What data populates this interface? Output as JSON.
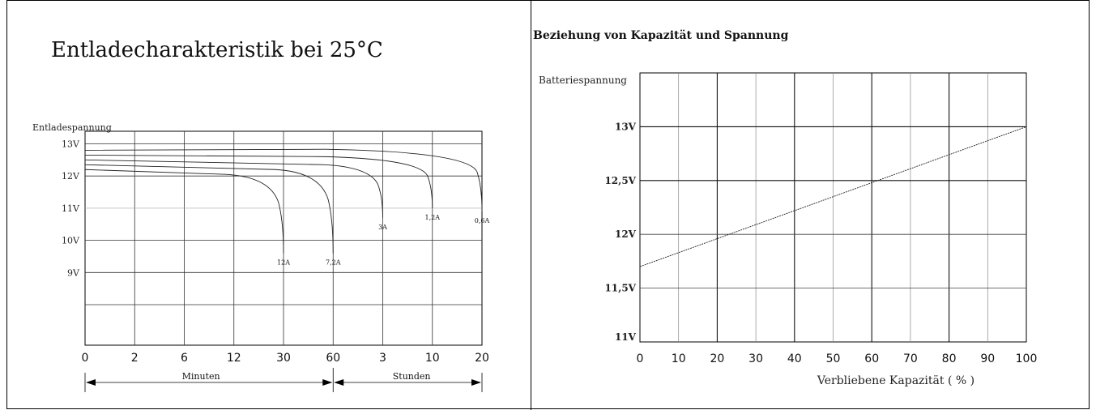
{
  "chart_data": [
    {
      "type": "line",
      "title": "Entladecharakteristik bei 25°C",
      "ylabel": "Entladespannung",
      "y_ticks": [
        "13V",
        "12V",
        "11V",
        "10V",
        "9V"
      ],
      "x_ticks": [
        "0",
        "2",
        "6",
        "12",
        "30",
        "60",
        "3",
        "10",
        "20"
      ],
      "x_groups": [
        "Minuten",
        "Stunden"
      ],
      "grid": true,
      "series": [
        {
          "name": "12A",
          "points": [
            [
              0,
              12.2
            ],
            [
              12,
              12.0
            ],
            [
              30,
              9.6
            ]
          ]
        },
        {
          "name": "7,2A",
          "points": [
            [
              0,
              12.35
            ],
            [
              30,
              12.15
            ],
            [
              60,
              9.6
            ]
          ]
        },
        {
          "name": "3A",
          "points": [
            [
              0,
              12.5
            ],
            [
              60,
              12.3
            ],
            [
              3,
              10.7
            ]
          ]
        },
        {
          "name": "1,2A",
          "points": [
            [
              0,
              12.65
            ],
            [
              60,
              12.55
            ],
            [
              10,
              11.0
            ]
          ]
        },
        {
          "name": "0,6A",
          "points": [
            [
              0,
              12.8
            ],
            [
              60,
              12.78
            ],
            [
              20,
              10.9
            ]
          ]
        }
      ]
    },
    {
      "type": "line",
      "title": "Beziehung von Kapazität und Spannung",
      "ylabel": "Batteriespannung",
      "xlabel": "Verbliebene Kapazität ( % )",
      "x_ticks": [
        "0",
        "10",
        "20",
        "30",
        "40",
        "50",
        "60",
        "70",
        "80",
        "90",
        "100"
      ],
      "y_ticks": [
        "13V",
        "12,5V",
        "12V",
        "11,5V",
        "11V"
      ],
      "xlim": [
        0,
        100
      ],
      "ylim": [
        11,
        13.5
      ],
      "grid": true,
      "series": [
        {
          "x": [
            0,
            100
          ],
          "y": [
            11.7,
            13.0
          ]
        }
      ]
    }
  ]
}
